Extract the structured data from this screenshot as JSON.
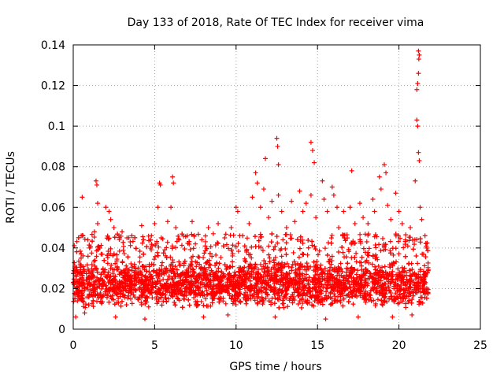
{
  "chart_data": {
    "type": "scatter",
    "title": "Day 133 of 2018, Rate Of TEC Index for receiver vima",
    "xlabel": "GPS time / hours",
    "ylabel": "ROTI / TECUs",
    "xlim": [
      0,
      25
    ],
    "ylim": [
      0,
      0.14
    ],
    "x_ticks": [
      0,
      5,
      10,
      15,
      20,
      25
    ],
    "x_tick_labels": [
      "0",
      "5",
      "10",
      "15",
      "20",
      "25"
    ],
    "y_ticks": [
      0,
      0.02,
      0.04,
      0.06,
      0.08,
      0.1,
      0.12,
      0.14
    ],
    "y_tick_labels": [
      "0",
      "0.02",
      "0.04",
      "0.06",
      "0.08",
      "0.1",
      "0.12",
      "0.14"
    ],
    "grid": true,
    "marker": "+",
    "color": "#ff0000",
    "data_x_range": [
      0,
      21.8
    ],
    "typical_band": [
      0.01,
      0.035
    ],
    "series": [
      {
        "name": "ROTI",
        "points": [
          [
            0.1,
            0.031
          ],
          [
            0.15,
            0.006
          ],
          [
            0.3,
            0.028
          ],
          [
            0.55,
            0.065
          ],
          [
            0.6,
            0.046
          ],
          [
            0.9,
            0.044
          ],
          [
            1.0,
            0.04
          ],
          [
            1.4,
            0.073
          ],
          [
            1.45,
            0.071
          ],
          [
            1.5,
            0.062
          ],
          [
            1.5,
            0.052
          ],
          [
            1.3,
            0.048
          ],
          [
            2.0,
            0.06
          ],
          [
            2.2,
            0.058
          ],
          [
            2.3,
            0.054
          ],
          [
            2.5,
            0.05
          ],
          [
            2.8,
            0.046
          ],
          [
            3.0,
            0.048
          ],
          [
            3.3,
            0.045
          ],
          [
            3.5,
            0.043
          ],
          [
            3.6,
            0.046
          ],
          [
            4.2,
            0.051
          ],
          [
            4.3,
            0.044
          ],
          [
            4.8,
            0.046
          ],
          [
            5.3,
            0.072
          ],
          [
            5.35,
            0.071
          ],
          [
            5.2,
            0.06
          ],
          [
            5.0,
            0.052
          ],
          [
            5.4,
            0.045
          ],
          [
            6.1,
            0.075
          ],
          [
            6.15,
            0.072
          ],
          [
            6.0,
            0.06
          ],
          [
            5.8,
            0.053
          ],
          [
            6.3,
            0.05
          ],
          [
            6.5,
            0.044
          ],
          [
            7.0,
            0.046
          ],
          [
            7.3,
            0.053
          ],
          [
            7.5,
            0.042
          ],
          [
            7.9,
            0.044
          ],
          [
            8.3,
            0.05
          ],
          [
            8.6,
            0.047
          ],
          [
            8.9,
            0.052
          ],
          [
            9.3,
            0.045
          ],
          [
            9.7,
            0.05
          ],
          [
            10.0,
            0.06
          ],
          [
            10.1,
            0.058
          ],
          [
            10.4,
            0.046
          ],
          [
            10.8,
            0.052
          ],
          [
            11.0,
            0.065
          ],
          [
            11.2,
            0.077
          ],
          [
            11.3,
            0.072
          ],
          [
            11.5,
            0.06
          ],
          [
            11.8,
            0.084
          ],
          [
            11.7,
            0.069
          ],
          [
            12.0,
            0.055
          ],
          [
            12.2,
            0.063
          ],
          [
            12.5,
            0.094
          ],
          [
            12.55,
            0.09
          ],
          [
            12.6,
            0.081
          ],
          [
            12.6,
            0.066
          ],
          [
            12.8,
            0.058
          ],
          [
            13.1,
            0.05
          ],
          [
            13.4,
            0.063
          ],
          [
            13.6,
            0.053
          ],
          [
            13.9,
            0.068
          ],
          [
            14.1,
            0.058
          ],
          [
            14.3,
            0.062
          ],
          [
            14.6,
            0.092
          ],
          [
            14.7,
            0.088
          ],
          [
            14.8,
            0.082
          ],
          [
            14.6,
            0.066
          ],
          [
            14.9,
            0.055
          ],
          [
            15.3,
            0.073
          ],
          [
            15.4,
            0.064
          ],
          [
            15.6,
            0.058
          ],
          [
            15.9,
            0.07
          ],
          [
            16.0,
            0.066
          ],
          [
            16.2,
            0.06
          ],
          [
            16.3,
            0.05
          ],
          [
            16.6,
            0.058
          ],
          [
            17.1,
            0.078
          ],
          [
            17.0,
            0.06
          ],
          [
            17.3,
            0.052
          ],
          [
            17.6,
            0.062
          ],
          [
            17.8,
            0.055
          ],
          [
            18.1,
            0.052
          ],
          [
            18.4,
            0.064
          ],
          [
            18.5,
            0.058
          ],
          [
            18.8,
            0.075
          ],
          [
            18.9,
            0.069
          ],
          [
            19.1,
            0.081
          ],
          [
            19.2,
            0.077
          ],
          [
            19.3,
            0.061
          ],
          [
            19.5,
            0.054
          ],
          [
            19.8,
            0.067
          ],
          [
            20.0,
            0.058
          ],
          [
            20.2,
            0.052
          ],
          [
            20.4,
            0.044
          ],
          [
            20.7,
            0.05
          ],
          [
            21.0,
            0.073
          ],
          [
            21.1,
            0.103
          ],
          [
            21.15,
            0.1
          ],
          [
            21.2,
            0.087
          ],
          [
            21.25,
            0.083
          ],
          [
            21.3,
            0.06
          ],
          [
            21.1,
            0.118
          ],
          [
            21.15,
            0.121
          ],
          [
            21.2,
            0.126
          ],
          [
            21.2,
            0.137
          ],
          [
            21.25,
            0.135
          ],
          [
            21.22,
            0.133
          ],
          [
            21.4,
            0.054
          ],
          [
            21.6,
            0.046
          ],
          [
            21.7,
            0.04
          ],
          [
            0.7,
            0.008
          ],
          [
            2.6,
            0.006
          ],
          [
            4.4,
            0.005
          ],
          [
            8.0,
            0.006
          ],
          [
            9.5,
            0.007
          ],
          [
            12.4,
            0.006
          ],
          [
            15.5,
            0.005
          ],
          [
            17.5,
            0.006
          ],
          [
            19.6,
            0.006
          ],
          [
            20.8,
            0.007
          ]
        ]
      }
    ]
  }
}
